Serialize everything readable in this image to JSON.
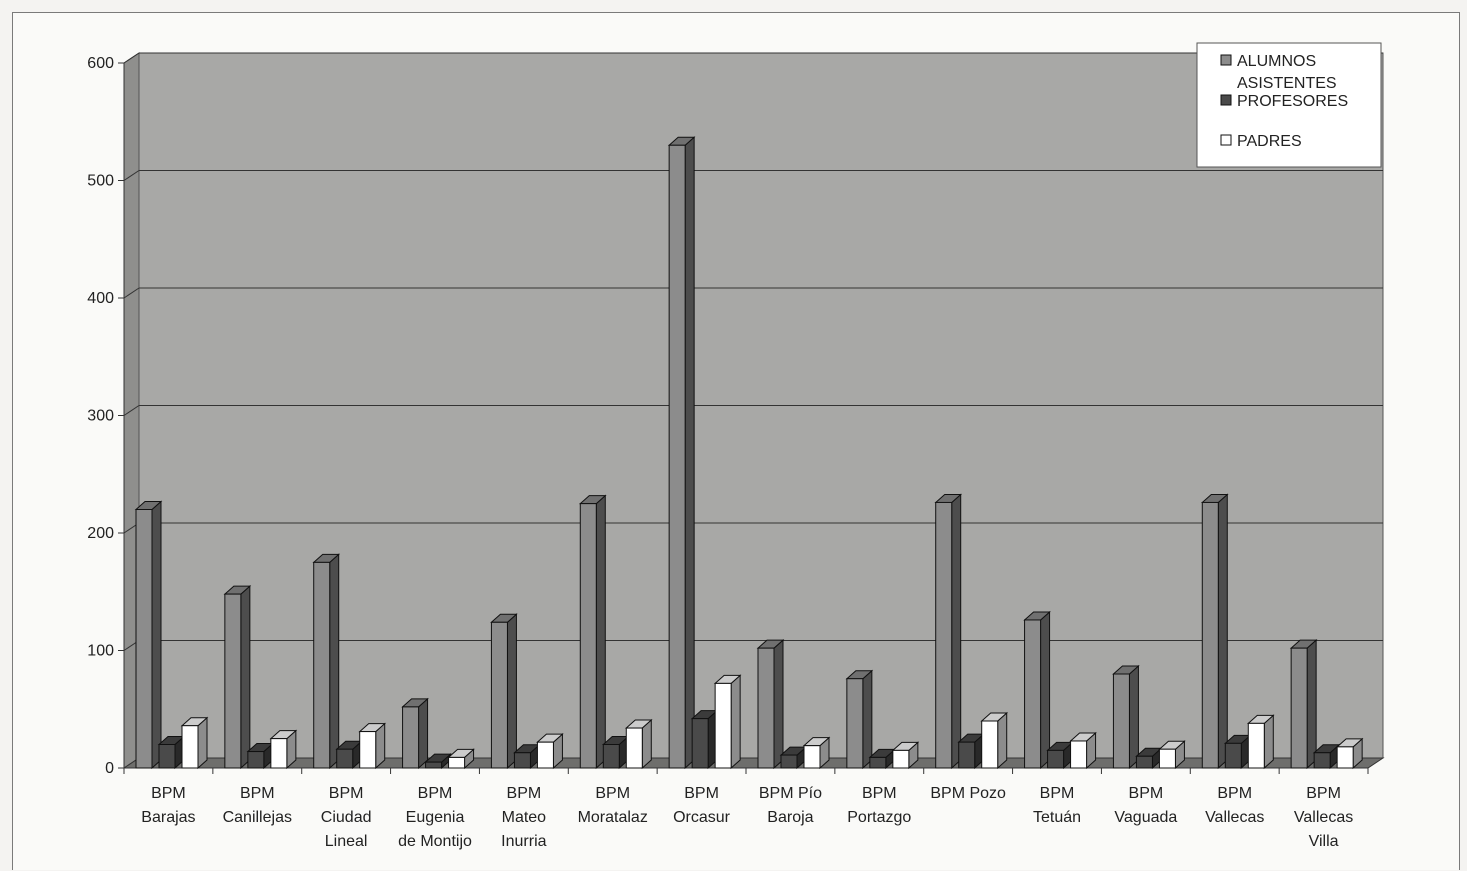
{
  "chart_data": {
    "type": "bar",
    "title": "",
    "xlabel": "",
    "ylabel": "",
    "ylim": [
      0,
      600
    ],
    "yticks": [
      0,
      100,
      200,
      300,
      400,
      500,
      600
    ],
    "grid": true,
    "legend_position": "top-right",
    "categories": [
      [
        "BPM",
        "Barajas"
      ],
      [
        "BPM",
        "Canillejas"
      ],
      [
        "BPM",
        "Ciudad",
        "Lineal"
      ],
      [
        "BPM",
        "Eugenia",
        "de Montijo"
      ],
      [
        "BPM",
        "Mateo",
        "Inurria"
      ],
      [
        "BPM",
        "Moratalaz"
      ],
      [
        "BPM",
        "Orcasur"
      ],
      [
        "BPM Pío",
        "Baroja"
      ],
      [
        "BPM",
        "Portazgo"
      ],
      [
        "BPM Pozo"
      ],
      [
        "BPM",
        "Tetuán"
      ],
      [
        "BPM",
        "Vaguada"
      ],
      [
        "BPM",
        "Vallecas"
      ],
      [
        "BPM",
        "Vallecas",
        "Villa"
      ]
    ],
    "series": [
      {
        "name": "ALUMNOS ASISTENTES",
        "legend_lines": [
          "ALUMNOS",
          "ASISTENTES"
        ],
        "color": "#8c8c8c",
        "values": [
          220,
          148,
          175,
          52,
          124,
          225,
          530,
          102,
          76,
          226,
          126,
          80,
          226,
          102
        ]
      },
      {
        "name": "PROFESORES",
        "legend_lines": [
          "PROFESORES"
        ],
        "color": "#4a4a4a",
        "values": [
          20,
          14,
          16,
          5,
          13,
          20,
          42,
          11,
          9,
          22,
          15,
          10,
          21,
          13
        ]
      },
      {
        "name": "PADRES",
        "legend_lines": [
          "PADRES"
        ],
        "color": "#ffffff",
        "values": [
          36,
          25,
          31,
          9,
          22,
          34,
          72,
          19,
          15,
          40,
          23,
          16,
          38,
          18
        ]
      }
    ]
  }
}
